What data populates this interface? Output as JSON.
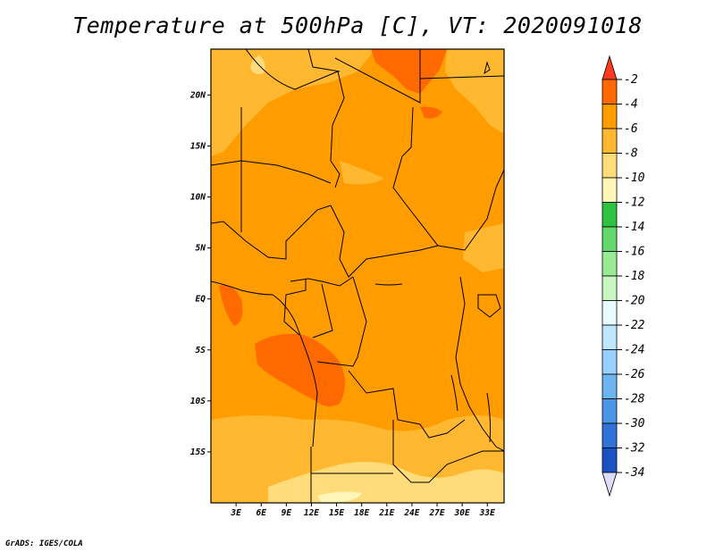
{
  "title": "Temperature at 500hPa [C], VT: 2020091018",
  "credit": "GrADS: IGES/COLA",
  "axes": {
    "lat_ticks": [
      {
        "label": "20N",
        "value": 20
      },
      {
        "label": "15N",
        "value": 15
      },
      {
        "label": "10N",
        "value": 10
      },
      {
        "label": "5N",
        "value": 5
      },
      {
        "label": "EQ",
        "value": 0
      },
      {
        "label": "5S",
        "value": -5
      },
      {
        "label": "10S",
        "value": -10
      },
      {
        "label": "15S",
        "value": -15
      }
    ],
    "lon_ticks": [
      {
        "label": "3E",
        "value": 3
      },
      {
        "label": "6E",
        "value": 6
      },
      {
        "label": "9E",
        "value": 9
      },
      {
        "label": "12E",
        "value": 12
      },
      {
        "label": "15E",
        "value": 15
      },
      {
        "label": "18E",
        "value": 18
      },
      {
        "label": "21E",
        "value": 21
      },
      {
        "label": "24E",
        "value": 24
      },
      {
        "label": "27E",
        "value": 27
      },
      {
        "label": "30E",
        "value": 30
      },
      {
        "label": "33E",
        "value": 33
      }
    ],
    "lat_range": [
      -20,
      24.5
    ],
    "lon_range": [
      0,
      35
    ]
  },
  "colorbar": {
    "labels": [
      "-2",
      "-4",
      "-6",
      "-8",
      "-10",
      "-12",
      "-14",
      "-16",
      "-18",
      "-20",
      "-22",
      "-24",
      "-26",
      "-28",
      "-30",
      "-32",
      "-34"
    ],
    "colors": [
      "#ff3b1e",
      "#ff6a00",
      "#ff9c00",
      "#ffb830",
      "#ffdc7a",
      "#fff6b8",
      "#2ec23e",
      "#64d86a",
      "#9aea94",
      "#c8f7c2",
      "#e8fbff",
      "#bfe6ff",
      "#9ad0ff",
      "#6cb4f2",
      "#4a95e6",
      "#2f73d6",
      "#1a52c2",
      "#0c33a0",
      "#0a1e6e",
      "#dcdcf6"
    ]
  },
  "colors": {
    "warmest": "#ff6a00",
    "warm": "#ff9c00",
    "mild": "#ffb830",
    "cool": "#ffdc7a",
    "coolest": "#fff6b8",
    "border": "#000000"
  }
}
